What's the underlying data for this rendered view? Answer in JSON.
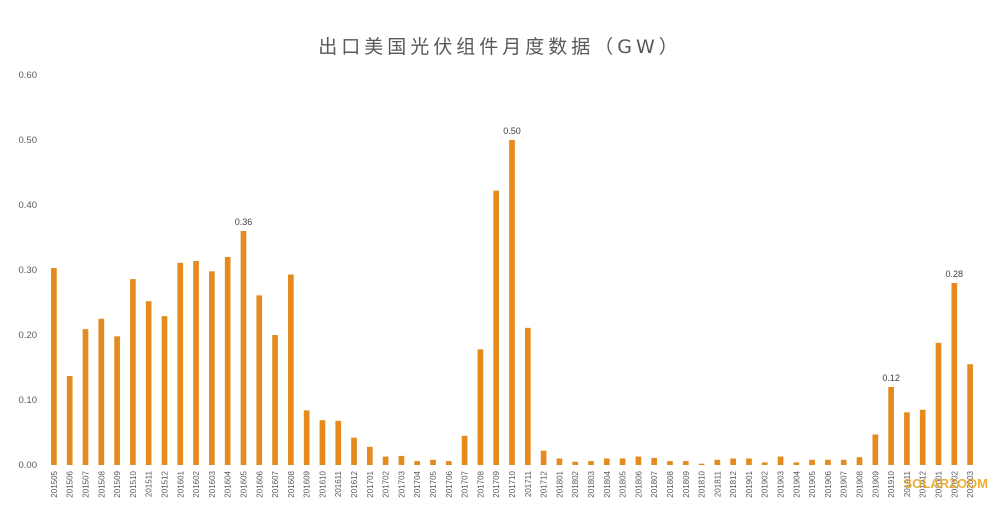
{
  "chart_data": {
    "type": "bar",
    "title": "出口美国光伏组件月度数据（GW）",
    "xlabel": "",
    "ylabel": "",
    "ylim": [
      0,
      0.6
    ],
    "yticks": [
      "0.00",
      "0.10",
      "0.20",
      "0.30",
      "0.40",
      "0.50",
      "0.60"
    ],
    "grid": false,
    "bar_color": "#e58a1f",
    "categories": [
      "201505",
      "201506",
      "201507",
      "201508",
      "201509",
      "201510",
      "201511",
      "201512",
      "201601",
      "201602",
      "201603",
      "201604",
      "201605",
      "201606",
      "201607",
      "201608",
      "201609",
      "201610",
      "201611",
      "201612",
      "201701",
      "201702",
      "201703",
      "201704",
      "201705",
      "201706",
      "201707",
      "201708",
      "201709",
      "201710",
      "201711",
      "201712",
      "201801",
      "201802",
      "201803",
      "201804",
      "201805",
      "201806",
      "201807",
      "201808",
      "201809",
      "201810",
      "201811",
      "201812",
      "201901",
      "201902",
      "201903",
      "201904",
      "201905",
      "201906",
      "201907",
      "201908",
      "201909",
      "201910",
      "201911",
      "201912",
      "202001",
      "202002",
      "202003"
    ],
    "values": [
      0.303,
      0.137,
      0.209,
      0.225,
      0.198,
      0.286,
      0.252,
      0.229,
      0.311,
      0.314,
      0.298,
      0.32,
      0.36,
      0.261,
      0.2,
      0.293,
      0.084,
      0.069,
      0.068,
      0.042,
      0.028,
      0.013,
      0.014,
      0.006,
      0.008,
      0.006,
      0.045,
      0.178,
      0.422,
      0.5,
      0.211,
      0.022,
      0.01,
      0.005,
      0.006,
      0.01,
      0.01,
      0.013,
      0.011,
      0.006,
      0.006,
      0.002,
      0.008,
      0.01,
      0.01,
      0.004,
      0.013,
      0.004,
      0.008,
      0.008,
      0.008,
      0.012,
      0.047,
      0.12,
      0.081,
      0.085,
      0.188,
      0.28,
      0.155
    ],
    "data_labels": [
      {
        "index": 12,
        "text": "0.36"
      },
      {
        "index": 29,
        "text": "0.50"
      },
      {
        "index": 53,
        "text": "0.12"
      },
      {
        "index": 57,
        "text": "0.28"
      }
    ]
  },
  "watermark": {
    "text": "SOLARZOOM",
    "color": "#e8a317"
  }
}
